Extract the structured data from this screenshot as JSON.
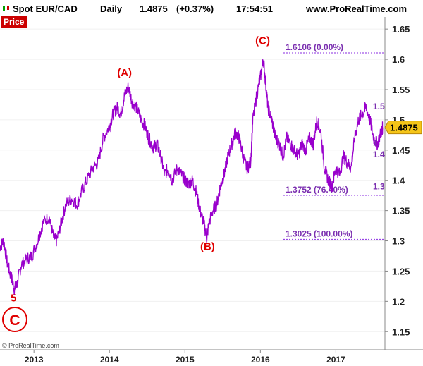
{
  "header": {
    "symbol": "Spot EUR/CAD",
    "period": "Daily",
    "last": "1.4875",
    "change": "(+0.37%)",
    "time": "17:54:51",
    "site": "www.ProRealTime.com"
  },
  "panel_label": "Price",
  "watermark": "© ProRealTime.com",
  "wave_circle_label": "C",
  "chart_data": {
    "type": "line",
    "ylim": [
      1.12,
      1.67
    ],
    "xlim": [
      2012.55,
      2017.65
    ],
    "y_ticks": [
      1.15,
      1.2,
      1.25,
      1.3,
      1.35,
      1.4,
      1.45,
      1.5,
      1.55,
      1.6,
      1.65
    ],
    "x_ticks": [
      {
        "label": "2013",
        "x": 2013.0
      },
      {
        "label": "2014",
        "x": 2014.0
      },
      {
        "label": "2015",
        "x": 2015.0
      },
      {
        "label": "2016",
        "x": 2016.0
      },
      {
        "label": "2017",
        "x": 2017.0
      }
    ],
    "last_value_label": "1.4875",
    "series": [
      {
        "color": "#9900cc",
        "points": [
          [
            2012.55,
            1.29
          ],
          [
            2012.6,
            1.3
          ],
          [
            2012.65,
            1.26
          ],
          [
            2012.7,
            1.24
          ],
          [
            2012.74,
            1.22
          ],
          [
            2012.78,
            1.23
          ],
          [
            2012.83,
            1.26
          ],
          [
            2012.9,
            1.27
          ],
          [
            2012.97,
            1.275
          ],
          [
            2013.05,
            1.3
          ],
          [
            2013.12,
            1.33
          ],
          [
            2013.2,
            1.34
          ],
          [
            2013.26,
            1.305
          ],
          [
            2013.3,
            1.3
          ],
          [
            2013.36,
            1.33
          ],
          [
            2013.42,
            1.36
          ],
          [
            2013.5,
            1.37
          ],
          [
            2013.57,
            1.36
          ],
          [
            2013.63,
            1.38
          ],
          [
            2013.7,
            1.4
          ],
          [
            2013.78,
            1.42
          ],
          [
            2013.85,
            1.43
          ],
          [
            2013.92,
            1.47
          ],
          [
            2014.0,
            1.49
          ],
          [
            2014.05,
            1.51
          ],
          [
            2014.1,
            1.52
          ],
          [
            2014.15,
            1.51
          ],
          [
            2014.2,
            1.54
          ],
          [
            2014.25,
            1.555
          ],
          [
            2014.3,
            1.53
          ],
          [
            2014.36,
            1.52
          ],
          [
            2014.42,
            1.5
          ],
          [
            2014.47,
            1.49
          ],
          [
            2014.52,
            1.47
          ],
          [
            2014.58,
            1.455
          ],
          [
            2014.63,
            1.46
          ],
          [
            2014.68,
            1.44
          ],
          [
            2014.73,
            1.41
          ],
          [
            2014.78,
            1.42
          ],
          [
            2014.83,
            1.4
          ],
          [
            2014.9,
            1.42
          ],
          [
            2014.95,
            1.41
          ],
          [
            2015.0,
            1.4
          ],
          [
            2015.05,
            1.395
          ],
          [
            2015.1,
            1.4
          ],
          [
            2015.15,
            1.38
          ],
          [
            2015.2,
            1.35
          ],
          [
            2015.25,
            1.33
          ],
          [
            2015.29,
            1.305
          ],
          [
            2015.32,
            1.33
          ],
          [
            2015.37,
            1.35
          ],
          [
            2015.42,
            1.36
          ],
          [
            2015.47,
            1.39
          ],
          [
            2015.52,
            1.41
          ],
          [
            2015.57,
            1.44
          ],
          [
            2015.62,
            1.46
          ],
          [
            2015.67,
            1.48
          ],
          [
            2015.72,
            1.47
          ],
          [
            2015.77,
            1.44
          ],
          [
            2015.82,
            1.42
          ],
          [
            2015.87,
            1.43
          ],
          [
            2015.9,
            1.5
          ],
          [
            2015.95,
            1.54
          ],
          [
            2016.0,
            1.57
          ],
          [
            2016.04,
            1.6
          ],
          [
            2016.07,
            1.56
          ],
          [
            2016.1,
            1.52
          ],
          [
            2016.15,
            1.5
          ],
          [
            2016.2,
            1.47
          ],
          [
            2016.25,
            1.46
          ],
          [
            2016.3,
            1.44
          ],
          [
            2016.35,
            1.47
          ],
          [
            2016.4,
            1.46
          ],
          [
            2016.45,
            1.45
          ],
          [
            2016.5,
            1.44
          ],
          [
            2016.55,
            1.46
          ],
          [
            2016.6,
            1.45
          ],
          [
            2016.65,
            1.47
          ],
          [
            2016.7,
            1.46
          ],
          [
            2016.75,
            1.5
          ],
          [
            2016.8,
            1.48
          ],
          [
            2016.85,
            1.42
          ],
          [
            2016.9,
            1.4
          ],
          [
            2016.95,
            1.39
          ],
          [
            2017.0,
            1.42
          ],
          [
            2017.05,
            1.41
          ],
          [
            2017.1,
            1.44
          ],
          [
            2017.15,
            1.43
          ],
          [
            2017.2,
            1.42
          ],
          [
            2017.25,
            1.47
          ],
          [
            2017.3,
            1.5
          ],
          [
            2017.35,
            1.51
          ],
          [
            2017.4,
            1.52
          ],
          [
            2017.45,
            1.5
          ],
          [
            2017.5,
            1.47
          ],
          [
            2017.55,
            1.46
          ],
          [
            2017.6,
            1.48
          ],
          [
            2017.62,
            1.4875
          ]
        ]
      }
    ],
    "fib_levels": [
      {
        "label": "1.6106 (0.00%)",
        "value": 1.6106
      },
      {
        "label": "1.3752 (76.40%)",
        "value": 1.3752
      },
      {
        "label": "1.3025 (100.00%)",
        "value": 1.3025
      }
    ],
    "right_partial_labels": [
      {
        "text": "1.5",
        "value": 1.522
      },
      {
        "text": "1.",
        "value": 1.462
      },
      {
        "text": "1.4",
        "value": 1.443
      },
      {
        "text": "1.3",
        "value": 1.39
      }
    ],
    "wave_labels": [
      {
        "text": "5",
        "x": 2012.73,
        "y": 1.2
      },
      {
        "text": "(A)",
        "x": 2014.2,
        "y": 1.572
      },
      {
        "text": "(B)",
        "x": 2015.3,
        "y": 1.285
      },
      {
        "text": "(C)",
        "x": 2016.03,
        "y": 1.625
      }
    ]
  }
}
